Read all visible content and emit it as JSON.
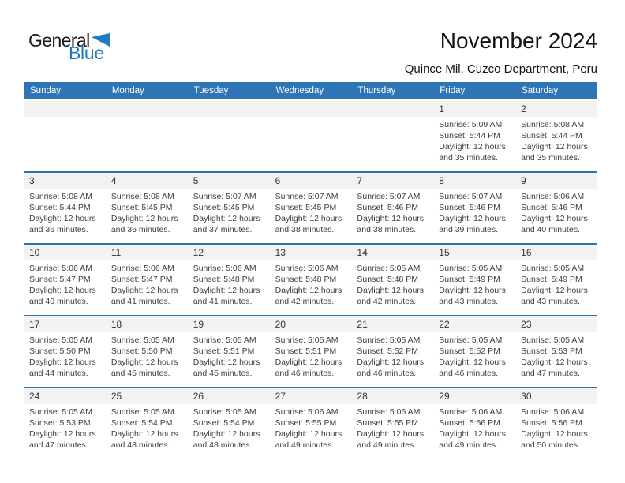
{
  "logo": {
    "word1": "General",
    "word2": "Blue"
  },
  "header": {
    "title": "November 2024",
    "subtitle": "Quince Mil, Cuzco Department, Peru"
  },
  "weekdays": [
    "Sunday",
    "Monday",
    "Tuesday",
    "Wednesday",
    "Thursday",
    "Friday",
    "Saturday"
  ],
  "colors": {
    "header_bg": "#2e75b6",
    "band_bg": "#f2f2f2",
    "logo_blue": "#1e7bbf"
  },
  "weeks": [
    [
      null,
      null,
      null,
      null,
      null,
      {
        "day": "1",
        "sunrise": "Sunrise: 5:09 AM",
        "sunset": "Sunset: 5:44 PM",
        "daylight_lines": [
          "Daylight: 12 hours",
          "and 35 minutes."
        ]
      },
      {
        "day": "2",
        "sunrise": "Sunrise: 5:08 AM",
        "sunset": "Sunset: 5:44 PM",
        "daylight_lines": [
          "Daylight: 12 hours",
          "and 35 minutes."
        ]
      }
    ],
    [
      {
        "day": "3",
        "sunrise": "Sunrise: 5:08 AM",
        "sunset": "Sunset: 5:44 PM",
        "daylight_lines": [
          "Daylight: 12 hours",
          "and 36 minutes."
        ]
      },
      {
        "day": "4",
        "sunrise": "Sunrise: 5:08 AM",
        "sunset": "Sunset: 5:45 PM",
        "daylight_lines": [
          "Daylight: 12 hours",
          "and 36 minutes."
        ]
      },
      {
        "day": "5",
        "sunrise": "Sunrise: 5:07 AM",
        "sunset": "Sunset: 5:45 PM",
        "daylight_lines": [
          "Daylight: 12 hours",
          "and 37 minutes."
        ]
      },
      {
        "day": "6",
        "sunrise": "Sunrise: 5:07 AM",
        "sunset": "Sunset: 5:45 PM",
        "daylight_lines": [
          "Daylight: 12 hours",
          "and 38 minutes."
        ]
      },
      {
        "day": "7",
        "sunrise": "Sunrise: 5:07 AM",
        "sunset": "Sunset: 5:46 PM",
        "daylight_lines": [
          "Daylight: 12 hours",
          "and 38 minutes."
        ]
      },
      {
        "day": "8",
        "sunrise": "Sunrise: 5:07 AM",
        "sunset": "Sunset: 5:46 PM",
        "daylight_lines": [
          "Daylight: 12 hours",
          "and 39 minutes."
        ]
      },
      {
        "day": "9",
        "sunrise": "Sunrise: 5:06 AM",
        "sunset": "Sunset: 5:46 PM",
        "daylight_lines": [
          "Daylight: 12 hours",
          "and 40 minutes."
        ]
      }
    ],
    [
      {
        "day": "10",
        "sunrise": "Sunrise: 5:06 AM",
        "sunset": "Sunset: 5:47 PM",
        "daylight_lines": [
          "Daylight: 12 hours",
          "and 40 minutes."
        ]
      },
      {
        "day": "11",
        "sunrise": "Sunrise: 5:06 AM",
        "sunset": "Sunset: 5:47 PM",
        "daylight_lines": [
          "Daylight: 12 hours",
          "and 41 minutes."
        ]
      },
      {
        "day": "12",
        "sunrise": "Sunrise: 5:06 AM",
        "sunset": "Sunset: 5:48 PM",
        "daylight_lines": [
          "Daylight: 12 hours",
          "and 41 minutes."
        ]
      },
      {
        "day": "13",
        "sunrise": "Sunrise: 5:06 AM",
        "sunset": "Sunset: 5:48 PM",
        "daylight_lines": [
          "Daylight: 12 hours",
          "and 42 minutes."
        ]
      },
      {
        "day": "14",
        "sunrise": "Sunrise: 5:05 AM",
        "sunset": "Sunset: 5:48 PM",
        "daylight_lines": [
          "Daylight: 12 hours",
          "and 42 minutes."
        ]
      },
      {
        "day": "15",
        "sunrise": "Sunrise: 5:05 AM",
        "sunset": "Sunset: 5:49 PM",
        "daylight_lines": [
          "Daylight: 12 hours",
          "and 43 minutes."
        ]
      },
      {
        "day": "16",
        "sunrise": "Sunrise: 5:05 AM",
        "sunset": "Sunset: 5:49 PM",
        "daylight_lines": [
          "Daylight: 12 hours",
          "and 43 minutes."
        ]
      }
    ],
    [
      {
        "day": "17",
        "sunrise": "Sunrise: 5:05 AM",
        "sunset": "Sunset: 5:50 PM",
        "daylight_lines": [
          "Daylight: 12 hours",
          "and 44 minutes."
        ]
      },
      {
        "day": "18",
        "sunrise": "Sunrise: 5:05 AM",
        "sunset": "Sunset: 5:50 PM",
        "daylight_lines": [
          "Daylight: 12 hours",
          "and 45 minutes."
        ]
      },
      {
        "day": "19",
        "sunrise": "Sunrise: 5:05 AM",
        "sunset": "Sunset: 5:51 PM",
        "daylight_lines": [
          "Daylight: 12 hours",
          "and 45 minutes."
        ]
      },
      {
        "day": "20",
        "sunrise": "Sunrise: 5:05 AM",
        "sunset": "Sunset: 5:51 PM",
        "daylight_lines": [
          "Daylight: 12 hours",
          "and 46 minutes."
        ]
      },
      {
        "day": "21",
        "sunrise": "Sunrise: 5:05 AM",
        "sunset": "Sunset: 5:52 PM",
        "daylight_lines": [
          "Daylight: 12 hours",
          "and 46 minutes."
        ]
      },
      {
        "day": "22",
        "sunrise": "Sunrise: 5:05 AM",
        "sunset": "Sunset: 5:52 PM",
        "daylight_lines": [
          "Daylight: 12 hours",
          "and 46 minutes."
        ]
      },
      {
        "day": "23",
        "sunrise": "Sunrise: 5:05 AM",
        "sunset": "Sunset: 5:53 PM",
        "daylight_lines": [
          "Daylight: 12 hours",
          "and 47 minutes."
        ]
      }
    ],
    [
      {
        "day": "24",
        "sunrise": "Sunrise: 5:05 AM",
        "sunset": "Sunset: 5:53 PM",
        "daylight_lines": [
          "Daylight: 12 hours",
          "and 47 minutes."
        ]
      },
      {
        "day": "25",
        "sunrise": "Sunrise: 5:05 AM",
        "sunset": "Sunset: 5:54 PM",
        "daylight_lines": [
          "Daylight: 12 hours",
          "and 48 minutes."
        ]
      },
      {
        "day": "26",
        "sunrise": "Sunrise: 5:05 AM",
        "sunset": "Sunset: 5:54 PM",
        "daylight_lines": [
          "Daylight: 12 hours",
          "and 48 minutes."
        ]
      },
      {
        "day": "27",
        "sunrise": "Sunrise: 5:06 AM",
        "sunset": "Sunset: 5:55 PM",
        "daylight_lines": [
          "Daylight: 12 hours",
          "and 49 minutes."
        ]
      },
      {
        "day": "28",
        "sunrise": "Sunrise: 5:06 AM",
        "sunset": "Sunset: 5:55 PM",
        "daylight_lines": [
          "Daylight: 12 hours",
          "and 49 minutes."
        ]
      },
      {
        "day": "29",
        "sunrise": "Sunrise: 5:06 AM",
        "sunset": "Sunset: 5:56 PM",
        "daylight_lines": [
          "Daylight: 12 hours",
          "and 49 minutes."
        ]
      },
      {
        "day": "30",
        "sunrise": "Sunrise: 5:06 AM",
        "sunset": "Sunset: 5:56 PM",
        "daylight_lines": [
          "Daylight: 12 hours",
          "and 50 minutes."
        ]
      }
    ]
  ]
}
